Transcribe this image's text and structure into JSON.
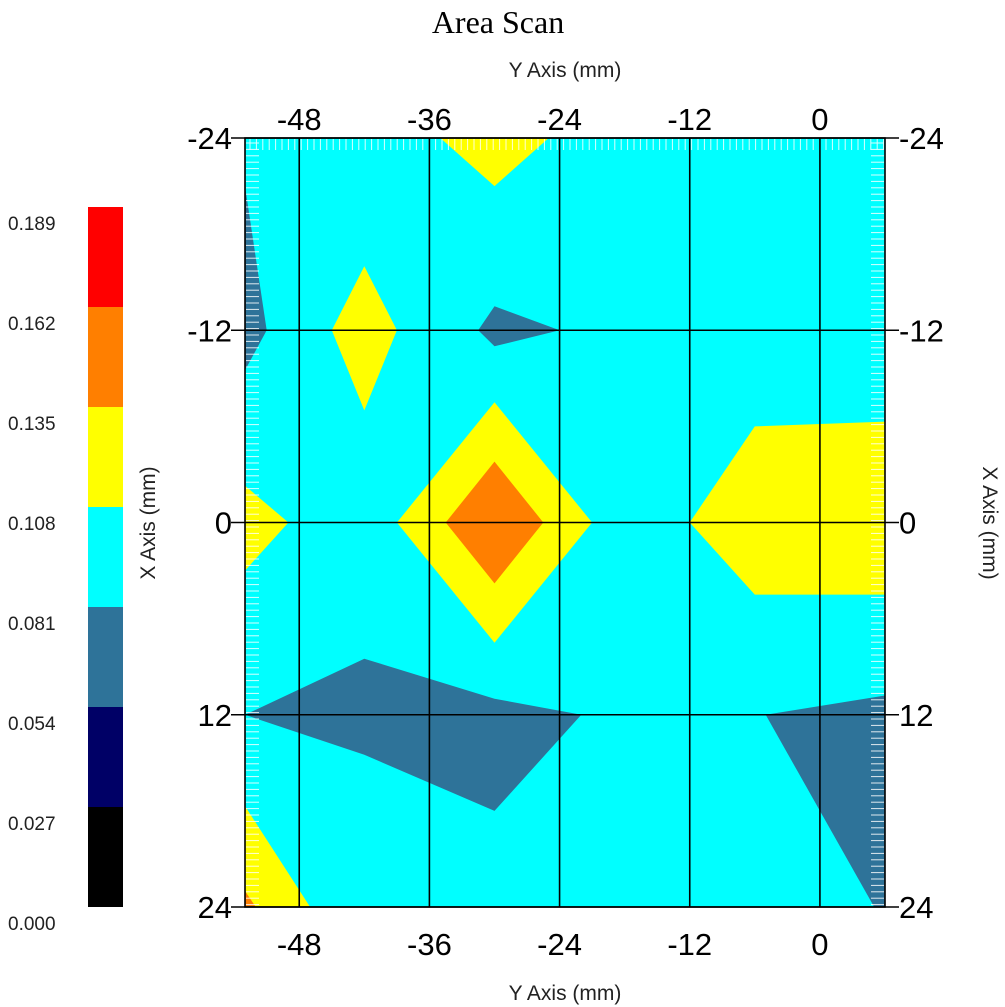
{
  "chart_data": {
    "type": "heatmap",
    "title": "Area Scan",
    "x_axis_label_top": "Y Axis (mm)",
    "x_axis_label_bottom": "Y Axis (mm)",
    "y_axis_label_left": "X Axis (mm)",
    "y_axis_label_right": "X Axis (mm)",
    "x_range": [
      -53,
      6
    ],
    "y_range": [
      -24,
      24
    ],
    "y_inverted": true,
    "x_ticks": [
      "-48",
      "-36",
      "-24",
      "-12",
      "0"
    ],
    "y_ticks": [
      "-24",
      "-12",
      "0",
      "12",
      "24"
    ],
    "grid": true,
    "colorbar": {
      "labels": [
        "0.189",
        "0.162",
        "0.135",
        "0.108",
        "0.081",
        "0.054",
        "0.027",
        "0.000"
      ],
      "colors": [
        "#ff0000",
        "#ff7f00",
        "#ffff00",
        "#00ffff",
        "#2e7399",
        "#000066",
        "#000000"
      ]
    },
    "background_level": 0.108,
    "regions": [
      {
        "level": 0.135,
        "color": "#ffff00",
        "outline": [
          [
            -30,
            -24
          ],
          [
            -35,
            -24
          ],
          [
            -30,
            -21
          ],
          [
            -25,
            -24
          ]
        ]
      },
      {
        "level": 0.081,
        "color": "#2e7399",
        "outline": [
          [
            -53,
            -21
          ],
          [
            -51,
            -12
          ],
          [
            -53,
            -9.5
          ]
        ]
      },
      {
        "level": 0.135,
        "color": "#ffff00",
        "outline": [
          [
            -42,
            -16
          ],
          [
            -39,
            -12
          ],
          [
            -42,
            -7
          ],
          [
            -45,
            -12
          ]
        ]
      },
      {
        "level": 0.081,
        "color": "#2e7399",
        "outline": [
          [
            -30,
            -13.5
          ],
          [
            -24,
            -12
          ],
          [
            -30,
            -11
          ],
          [
            -31.5,
            -12
          ]
        ]
      },
      {
        "level": 0.135,
        "color": "#ffff00",
        "outline": [
          [
            -30,
            -7.5
          ],
          [
            -21,
            0
          ],
          [
            -30,
            7.5
          ],
          [
            -39,
            0
          ]
        ]
      },
      {
        "level": 0.162,
        "color": "#ff7f00",
        "outline": [
          [
            -30,
            -3.8
          ],
          [
            -25.5,
            0
          ],
          [
            -30,
            3.8
          ],
          [
            -34.5,
            0
          ]
        ]
      },
      {
        "level": 0.135,
        "color": "#ffff00",
        "outline": [
          [
            -53,
            -2.3
          ],
          [
            -49,
            0
          ],
          [
            -53,
            3
          ]
        ]
      },
      {
        "level": 0.135,
        "color": "#ffff00",
        "outline": [
          [
            -6,
            -6
          ],
          [
            6,
            -6.3
          ],
          [
            6,
            4.5
          ],
          [
            -6,
            4.5
          ],
          [
            -12,
            0
          ]
        ]
      },
      {
        "level": 0.081,
        "color": "#2e7399",
        "outline": [
          [
            -53,
            12
          ],
          [
            -42,
            8.5
          ],
          [
            -30,
            11
          ],
          [
            -22,
            12
          ],
          [
            -30,
            18
          ],
          [
            -42,
            14.5
          ]
        ]
      },
      {
        "level": 0.081,
        "color": "#2e7399",
        "outline": [
          [
            -5,
            12
          ],
          [
            6,
            10.8
          ],
          [
            6,
            24
          ],
          [
            5,
            24
          ]
        ]
      },
      {
        "level": 0.135,
        "color": "#ffff00",
        "outline": [
          [
            -53,
            17.7
          ],
          [
            -47,
            24
          ],
          [
            -53,
            24
          ]
        ]
      },
      {
        "level": 0.162,
        "color": "#ff7f00",
        "outline": [
          [
            -53,
            23
          ],
          [
            -52,
            24
          ],
          [
            -53,
            24
          ]
        ]
      }
    ]
  }
}
